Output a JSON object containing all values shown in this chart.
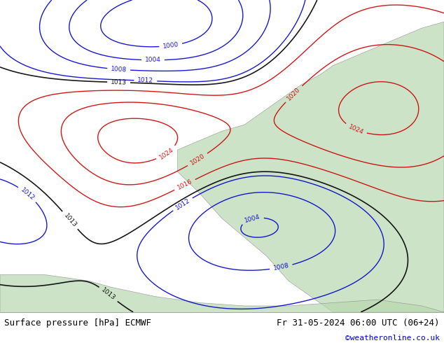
{
  "title_left": "Surface pressure [hPa] ECMWF",
  "title_right": "Fr 31-05-2024 06:00 UTC (06+24)",
  "credit": "©weatheronline.co.uk",
  "bg_color": "#e8f4e8",
  "land_color": "#c8e6c8",
  "sea_color": "#ddeeff",
  "fig_width": 6.34,
  "fig_height": 4.9,
  "dpi": 100,
  "bottom_bar_color": "#f0f0f0",
  "title_fontsize": 9,
  "credit_fontsize": 8,
  "credit_color": "#0000cc"
}
